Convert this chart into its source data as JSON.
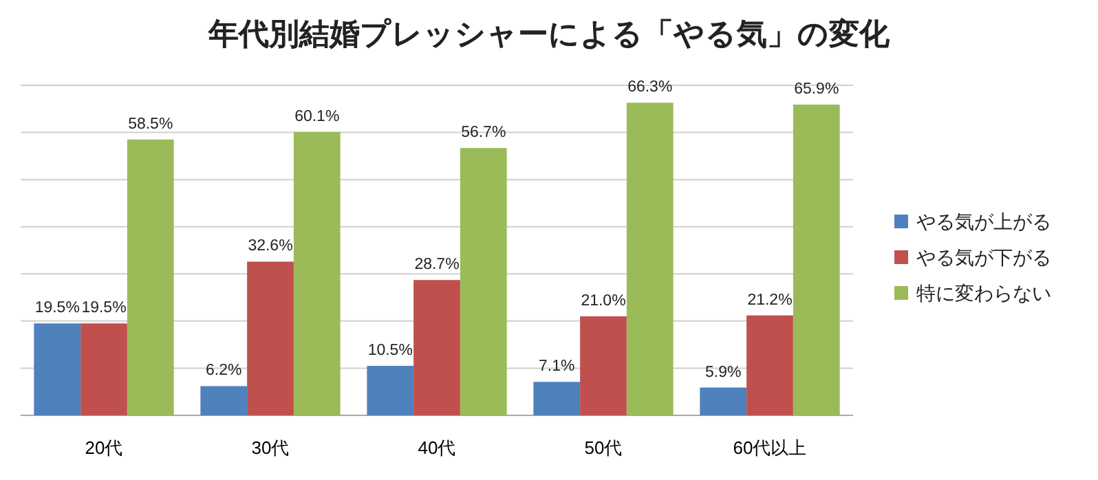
{
  "chart_data": {
    "type": "bar",
    "title": "年代別結婚プレッシャーによる「やる気」の変化",
    "categories": [
      "20代",
      "30代",
      "40代",
      "50代",
      "60代以上"
    ],
    "series": [
      {
        "name": "やる気が上がる",
        "color": "#4f81bd",
        "values": [
          19.5,
          6.2,
          10.5,
          7.1,
          5.9
        ],
        "value_labels": [
          "19.5%",
          "6.2%",
          "10.5%",
          "7.1%",
          "5.9%"
        ]
      },
      {
        "name": "やる気が下がる",
        "color": "#c0504d",
        "values": [
          19.5,
          32.6,
          28.7,
          21.0,
          21.2
        ],
        "value_labels": [
          "19.5%",
          "32.6%",
          "28.7%",
          "21.0%",
          "21.2%"
        ]
      },
      {
        "name": "特に変わらない",
        "color": "#9bbb59",
        "values": [
          58.5,
          60.1,
          56.7,
          66.3,
          65.9
        ],
        "value_labels": [
          "58.5%",
          "60.1%",
          "56.7%",
          "66.3%",
          "65.9%"
        ]
      }
    ],
    "ylim": [
      0,
      70
    ],
    "yticks": [
      {
        "value": 0,
        "label": null
      },
      {
        "value": 10,
        "label": null
      },
      {
        "value": 20,
        "label": null
      },
      {
        "value": 30,
        "label": null
      },
      {
        "value": 40,
        "label": null
      },
      {
        "value": 50,
        "label": null
      },
      {
        "value": 60,
        "label": null
      },
      {
        "value": 70,
        "label": null
      }
    ],
    "grid": "y",
    "legend": "right",
    "tick_labels": "x"
  }
}
